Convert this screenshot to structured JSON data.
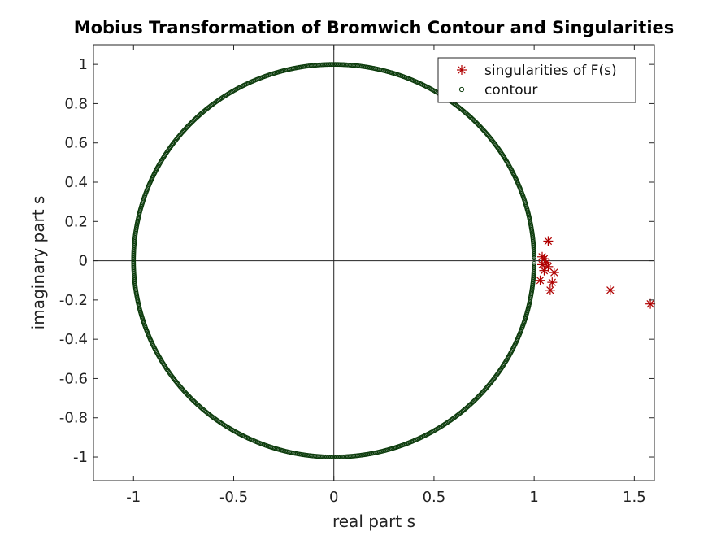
{
  "chart_data": {
    "type": "scatter",
    "title": "Mobius Transformation of Bromwich Contour and Singularities",
    "xlabel": "real part s",
    "ylabel": "imaginary part s",
    "xlim": [
      -1.2,
      1.6
    ],
    "ylim": [
      -1.12,
      1.1
    ],
    "xticks": [
      -1,
      -0.5,
      0,
      0.5,
      1,
      1.5
    ],
    "xtick_labels": [
      "-1",
      "-0.5",
      "0",
      "0.5",
      "1",
      "1.5"
    ],
    "yticks": [
      1,
      0.8,
      0.6,
      0.4,
      0.2,
      0,
      -0.2,
      -0.4,
      -0.6,
      -0.8,
      -1
    ],
    "ytick_labels": [
      "1",
      "0.8",
      "0.6",
      "0.4",
      "0.2",
      "0",
      "-0.2",
      "-0.4",
      "-0.6",
      "-0.8",
      "-1"
    ],
    "grid": false,
    "zero_axes": true,
    "legend_position": "top-right",
    "series": [
      {
        "name": "singularities of F(s)",
        "marker": "asterisk",
        "color": "#b00000",
        "points": [
          [
            1.07,
            0.1
          ],
          [
            1.04,
            0.02
          ],
          [
            1.05,
            0.01
          ],
          [
            1.06,
            -0.01
          ],
          [
            1.04,
            -0.02
          ],
          [
            1.07,
            -0.03
          ],
          [
            1.05,
            -0.05
          ],
          [
            1.1,
            -0.06
          ],
          [
            1.03,
            -0.1
          ],
          [
            1.09,
            -0.11
          ],
          [
            1.08,
            -0.15
          ],
          [
            1.38,
            -0.15
          ],
          [
            1.58,
            -0.22
          ]
        ]
      },
      {
        "name": "contour",
        "marker": "circle",
        "color": "#0a3a0a",
        "shape": "unit-circle",
        "radius": 1,
        "center": [
          0,
          0
        ],
        "gap_near": [
          1,
          0
        ]
      }
    ]
  }
}
